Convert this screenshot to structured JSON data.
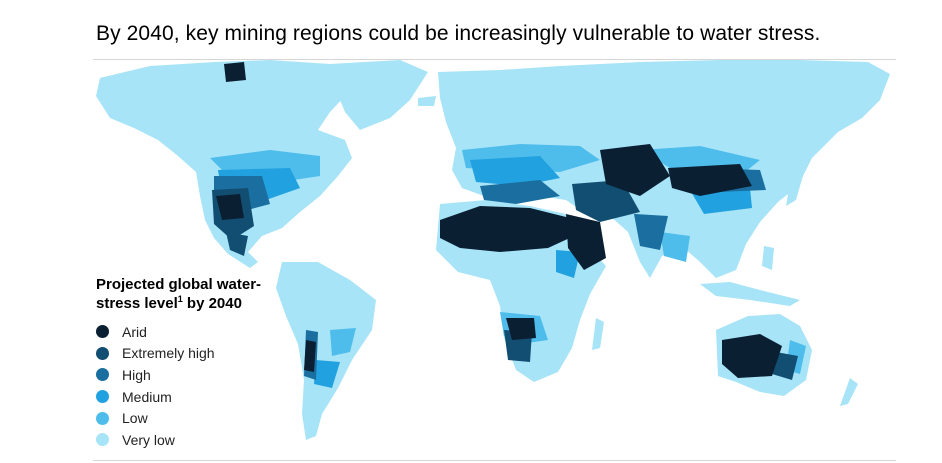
{
  "title": "By 2040, key mining regions could be increasingly vulnerable to water stress.",
  "legend": {
    "title_line1": "Projected global water-",
    "title_line2": "stress level",
    "title_footnote": "1",
    "title_line2_suffix": " by 2040",
    "items": [
      {
        "label": "Arid",
        "color": "#0b1f33"
      },
      {
        "label": "Extremely high",
        "color": "#124e72"
      },
      {
        "label": "High",
        "color": "#1a6fa0"
      },
      {
        "label": "Medium",
        "color": "#22a1e0"
      },
      {
        "label": "Low",
        "color": "#4fbdeb"
      },
      {
        "label": "Very low",
        "color": "#a7e4f7"
      }
    ]
  }
}
